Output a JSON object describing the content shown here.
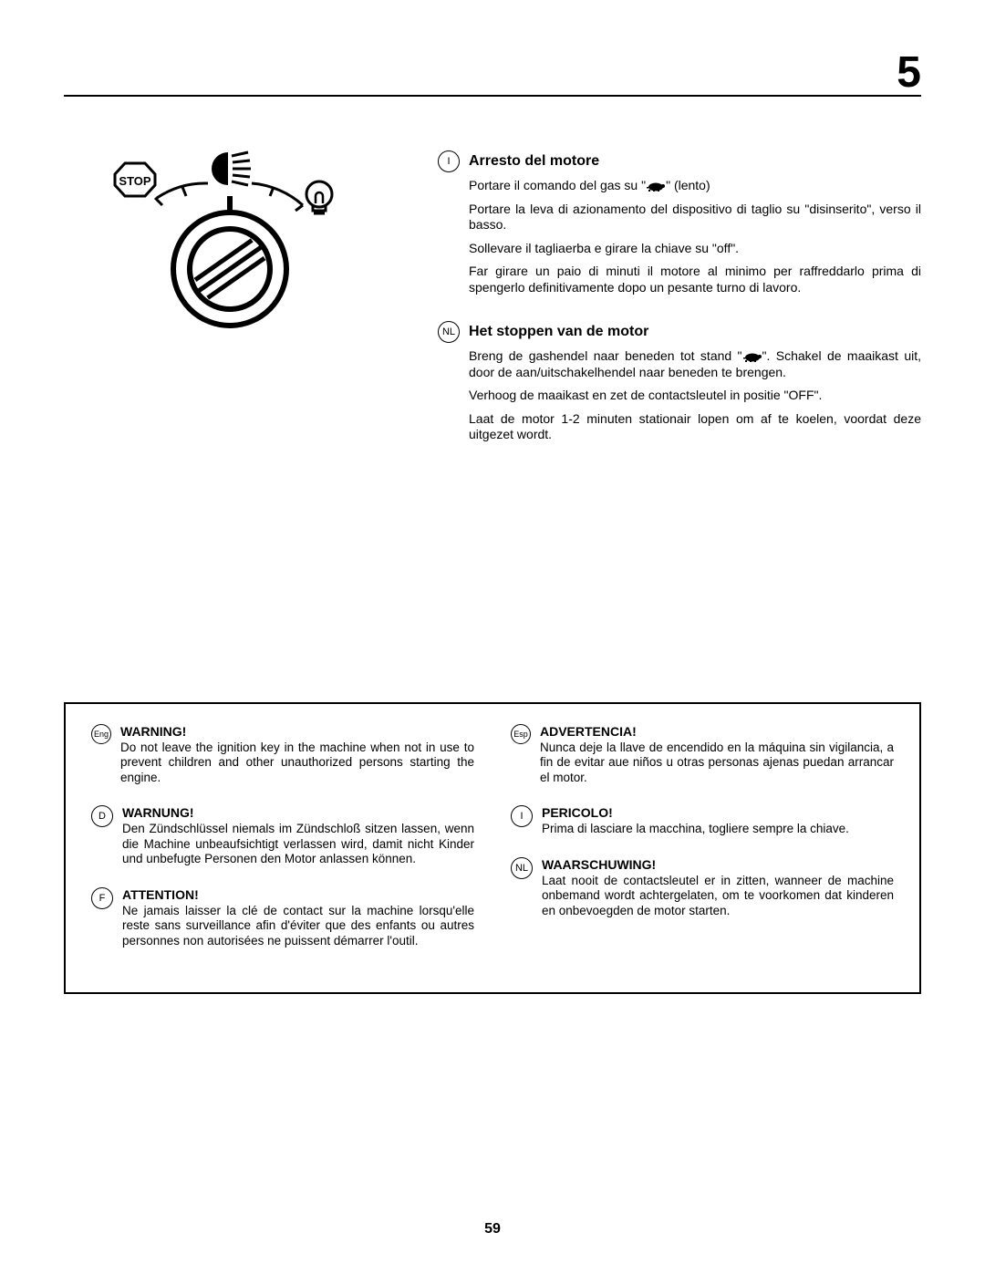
{
  "chapterNumber": "5",
  "pageNumber": "59",
  "diagram": {
    "stopLabel": "STOP"
  },
  "instructions": [
    {
      "lang": "I",
      "title": "Arresto del motore",
      "paragraphs": [
        {
          "pre": "Portare il comando del gas su \"",
          "hasTurtle": true,
          "post": "\" (lento)"
        },
        {
          "text": "Portare la leva di azionamento del dispositivo di taglio su \"disinserito\", verso il basso."
        },
        {
          "text": "Sollevare il tagliaerba e girare la chiave su \"off\"."
        },
        {
          "text": "Far girare un paio di minuti il motore al minimo per raffreddarlo prima di spengerlo definitivamente dopo un pesante turno di lavoro."
        }
      ]
    },
    {
      "lang": "NL",
      "title": "Het stoppen van de motor",
      "paragraphs": [
        {
          "pre": "Breng de gashendel naar beneden tot stand \"",
          "hasTurtle": true,
          "post": "\". Schakel de maaikast uit, door de aan/uitschakelhendel naar beneden te brengen."
        },
        {
          "text": "Verhoog de maaikast en zet de contactsleutel in positie \"OFF\"."
        },
        {
          "text": "Laat de motor 1-2 minuten stationair lopen om af te koelen, voordat deze uitgezet wordt."
        }
      ]
    }
  ],
  "warnings": {
    "left": [
      {
        "lang": "Eng",
        "small": true,
        "title": "WARNING!",
        "body": "Do not leave the ignition key in the machine when not in use to prevent children and other unauthorized persons starting the engine."
      },
      {
        "lang": "D",
        "title": "WARNUNG!",
        "body": "Den Zündschlüssel niemals im Zündschloß sitzen lassen, wenn die Machine unbeaufsichtigt verlassen wird, damit nicht Kinder und unbefugte Personen den Motor anlassen können."
      },
      {
        "lang": "F",
        "title": "ATTENTION!",
        "body": "Ne jamais laisser la clé de contact sur la machine lorsqu'elle reste sans surveillance afin d'éviter que des enfants ou autres personnes non autorisées ne puissent démarrer l'outil."
      }
    ],
    "right": [
      {
        "lang": "Esp",
        "small": true,
        "title": "ADVERTENCIA!",
        "body": "Nunca deje la llave de encendido en la máquina sin vigilancia, a fin de evitar aue niños u otras personas ajenas puedan arrancar el motor."
      },
      {
        "lang": "I",
        "title": "PERICOLO!",
        "body": "Prima di lasciare la macchina, togliere sempre la chiave."
      },
      {
        "lang": "NL",
        "title": "WAARSCHUWING!",
        "body": "Laat nooit de contactsleutel er in zitten, wanneer de machine onbemand wordt achtergelaten, om te voorkomen dat kinderen en onbevoegden de motor starten."
      }
    ]
  }
}
